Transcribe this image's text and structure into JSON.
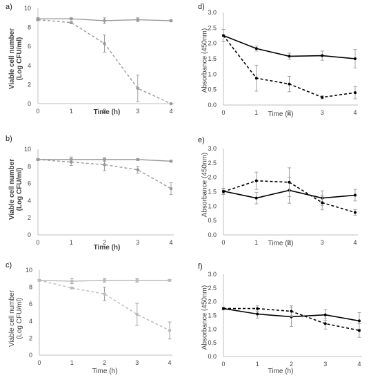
{
  "chart_data": [
    {
      "panel": "a)",
      "type": "line",
      "xlabel": "Time (h)",
      "ylabel_lines": [
        "Viable cell number",
        "(Log CFU/ml)"
      ],
      "x": [
        0,
        1,
        2,
        3,
        4
      ],
      "xticks": [
        0,
        1,
        2,
        3,
        4
      ],
      "yticks": [
        0,
        2,
        4,
        6,
        8,
        10
      ],
      "ylim": [
        0,
        10
      ],
      "color": "#999999",
      "series": [
        {
          "style": "solid",
          "values": [
            8.9,
            8.9,
            8.7,
            8.8,
            8.7
          ],
          "errors": [
            0.1,
            0.1,
            0.3,
            0.2,
            0.1
          ]
        },
        {
          "style": "dashed",
          "values": [
            8.8,
            8.5,
            6.3,
            1.6,
            0.0
          ],
          "errors": [
            0.1,
            0.1,
            0.9,
            1.4,
            0.0
          ]
        }
      ]
    },
    {
      "panel": "d)",
      "type": "line",
      "xlabel": "Time (h)",
      "ylabel_lines": [
        "Absorbance (450nm)"
      ],
      "x": [
        0,
        1,
        2,
        3,
        4
      ],
      "xticks": [
        0,
        1,
        2,
        3,
        4
      ],
      "yticks": [
        "0.0",
        "0.5",
        "1.0",
        "1.5",
        "2.0",
        "2.5",
        "3.0"
      ],
      "ylim": [
        0,
        3
      ],
      "color": "#000000",
      "series": [
        {
          "style": "solid",
          "values": [
            2.25,
            1.83,
            1.58,
            1.6,
            1.5
          ],
          "errors": [
            0.2,
            0.08,
            0.1,
            0.15,
            0.3
          ]
        },
        {
          "style": "dashed",
          "values": [
            2.25,
            0.87,
            0.68,
            0.25,
            0.4
          ],
          "errors": [
            0.2,
            0.42,
            0.25,
            0.05,
            0.2
          ]
        }
      ]
    },
    {
      "panel": "b)",
      "type": "line",
      "xlabel": "Time (h)",
      "ylabel_lines": [
        "Viable cell number",
        "(Log CFU/ml)"
      ],
      "x": [
        0,
        1,
        2,
        3,
        4
      ],
      "xticks": [
        0,
        1,
        2,
        3,
        4
      ],
      "yticks": [
        0,
        2,
        4,
        6,
        8,
        10
      ],
      "ylim": [
        0,
        10
      ],
      "color": "#999999",
      "series": [
        {
          "style": "solid",
          "values": [
            8.8,
            8.8,
            8.8,
            8.8,
            8.6
          ],
          "errors": [
            0.1,
            0.3,
            0.2,
            0.1,
            0.1
          ]
        },
        {
          "style": "dashed",
          "values": [
            8.8,
            8.5,
            8.2,
            7.6,
            5.4
          ],
          "errors": [
            0.1,
            0.4,
            0.7,
            0.4,
            0.7
          ]
        }
      ]
    },
    {
      "panel": "e)",
      "type": "line",
      "xlabel": "Time (h)",
      "ylabel_lines": [
        "Absorbance (450nm)"
      ],
      "x": [
        0,
        1,
        2,
        3,
        4
      ],
      "xticks": [
        0,
        1,
        2,
        3,
        4
      ],
      "yticks": [
        "0.0",
        "0.5",
        "1.0",
        "1.5",
        "2.0",
        "2.5",
        "3.0"
      ],
      "ylim": [
        0,
        3
      ],
      "color": "#000000",
      "series": [
        {
          "style": "solid",
          "values": [
            1.52,
            1.28,
            1.55,
            1.28,
            1.38
          ],
          "errors": [
            0.1,
            0.2,
            0.45,
            0.25,
            0.2
          ]
        },
        {
          "style": "dashed",
          "values": [
            1.5,
            1.88,
            1.83,
            1.12,
            0.78
          ],
          "errors": [
            0.1,
            0.3,
            0.5,
            0.25,
            0.1
          ]
        }
      ]
    },
    {
      "panel": "c)",
      "type": "line",
      "xlabel": "Time (h)",
      "ylabel_lines": [
        "Viable cell number",
        "(Log CFU/ml)"
      ],
      "x": [
        0,
        1,
        2,
        3,
        4
      ],
      "xticks": [
        0,
        1,
        2,
        3,
        4
      ],
      "yticks": [
        0,
        2,
        4,
        6,
        8,
        10
      ],
      "ylim": [
        0,
        10
      ],
      "color": "#bbbbbb",
      "series": [
        {
          "style": "solid",
          "values": [
            8.8,
            8.7,
            8.8,
            8.8,
            8.8
          ],
          "errors": [
            0.1,
            0.3,
            0.2,
            0.2,
            0.1
          ]
        },
        {
          "style": "dashed",
          "values": [
            8.8,
            7.9,
            7.2,
            4.8,
            2.9
          ],
          "errors": [
            0.1,
            0.1,
            0.8,
            1.3,
            1.0
          ]
        }
      ]
    },
    {
      "panel": "f)",
      "type": "line",
      "xlabel": "Time (h)",
      "ylabel_lines": [
        "Absorbance (450nm)"
      ],
      "x": [
        0,
        1,
        2,
        3,
        4
      ],
      "xticks": [
        0,
        1,
        2,
        3,
        4
      ],
      "yticks": [
        "0.0",
        "0.5",
        "1.0",
        "1.5",
        "2.0",
        "2.5",
        "3.0"
      ],
      "ylim": [
        0,
        3
      ],
      "color": "#000000",
      "series": [
        {
          "style": "solid",
          "values": [
            1.75,
            1.55,
            1.45,
            1.52,
            1.3
          ],
          "errors": [
            0.05,
            0.15,
            0.35,
            0.2,
            0.3
          ]
        },
        {
          "style": "dashed",
          "values": [
            1.75,
            1.75,
            1.65,
            1.2,
            0.95
          ],
          "errors": [
            0.05,
            0.1,
            0.2,
            0.2,
            0.25
          ]
        }
      ]
    }
  ]
}
